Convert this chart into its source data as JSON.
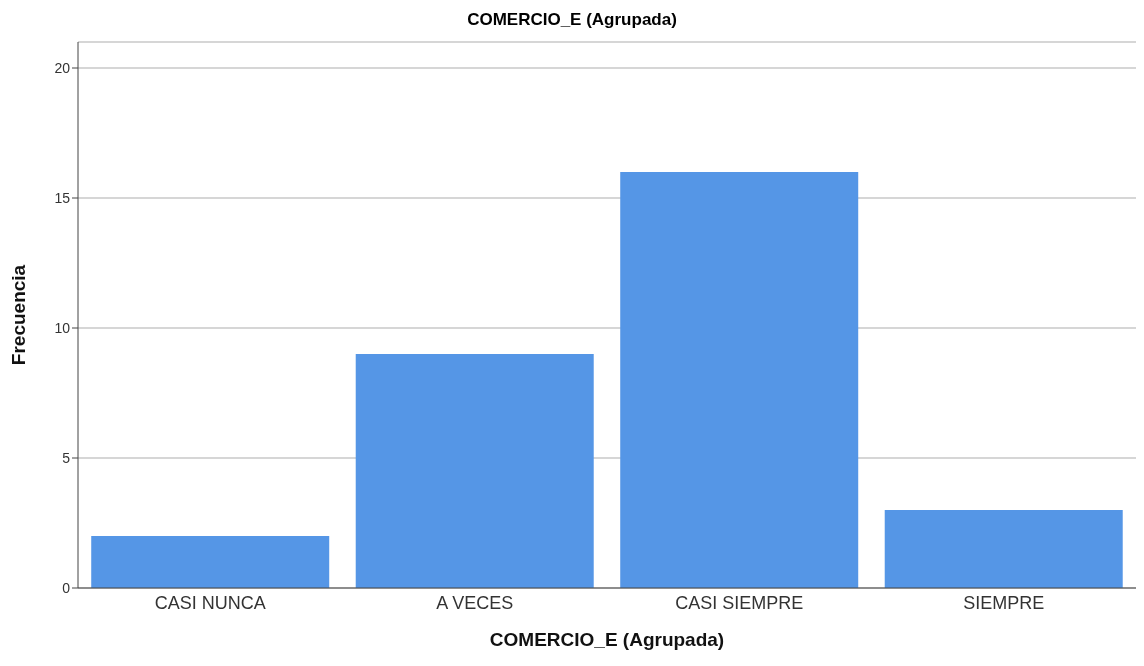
{
  "chart_data": {
    "type": "bar",
    "title": "COMERCIO_E (Agrupada)",
    "xlabel": "COMERCIO_E (Agrupada)",
    "ylabel": "Frecuencia",
    "categories": [
      "CASI NUNCA",
      "A VECES",
      "CASI SIEMPRE",
      "SIEMPRE"
    ],
    "values": [
      2,
      9,
      16,
      3
    ],
    "color": "#5596e6",
    "ylim": [
      0,
      21
    ],
    "yticks": [
      0,
      5,
      10,
      15,
      20
    ],
    "grid": "y"
  }
}
